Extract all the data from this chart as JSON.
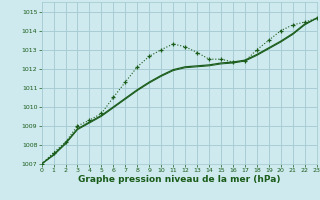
{
  "background_color": "#ceeaee",
  "grid_color": "#a8cdd4",
  "line_color_dark": "#1a5c1a",
  "x_label": "Graphe pression niveau de la mer (hPa)",
  "ylim": [
    1007,
    1015.5
  ],
  "xlim": [
    0,
    23
  ],
  "yticks": [
    1007,
    1008,
    1009,
    1010,
    1011,
    1012,
    1013,
    1014,
    1015
  ],
  "xticks": [
    0,
    1,
    2,
    3,
    4,
    5,
    6,
    7,
    8,
    9,
    10,
    11,
    12,
    13,
    14,
    15,
    16,
    17,
    18,
    19,
    20,
    21,
    22,
    23
  ],
  "series1_x": [
    0,
    1,
    2,
    3,
    4,
    5,
    6,
    7,
    8,
    9,
    10,
    11,
    12,
    13,
    14,
    15,
    16,
    17,
    18,
    19,
    20,
    21,
    22,
    23
  ],
  "series1_y": [
    1007.0,
    1007.6,
    1008.15,
    1009.0,
    1009.3,
    1009.65,
    1010.5,
    1011.3,
    1012.1,
    1012.65,
    1013.0,
    1013.3,
    1013.15,
    1012.85,
    1012.5,
    1012.5,
    1012.35,
    1012.4,
    1013.0,
    1013.5,
    1014.0,
    1014.3,
    1014.45,
    1014.65
  ],
  "series2_x": [
    0,
    1,
    2,
    3,
    4,
    5,
    6,
    7,
    8,
    9,
    10,
    11,
    12,
    13,
    14,
    15,
    16,
    17,
    18,
    19,
    20,
    21,
    22,
    23
  ],
  "series2_y": [
    1007.0,
    1007.5,
    1008.1,
    1008.85,
    1009.2,
    1009.55,
    1010.0,
    1010.45,
    1010.9,
    1011.3,
    1011.65,
    1011.95,
    1012.1,
    1012.15,
    1012.2,
    1012.3,
    1012.35,
    1012.45,
    1012.75,
    1013.1,
    1013.45,
    1013.85,
    1014.35,
    1014.65
  ],
  "series3_x": [
    0,
    1,
    2,
    3,
    4,
    5,
    6,
    7,
    8,
    9,
    10,
    11,
    12,
    13,
    14,
    15,
    16,
    17,
    18,
    19,
    20,
    21,
    22,
    23
  ],
  "series3_y": [
    1007.0,
    1007.45,
    1008.05,
    1008.8,
    1009.15,
    1009.5,
    1009.95,
    1010.4,
    1010.85,
    1011.25,
    1011.6,
    1011.9,
    1012.05,
    1012.1,
    1012.15,
    1012.25,
    1012.3,
    1012.4,
    1012.7,
    1013.05,
    1013.4,
    1013.8,
    1014.3,
    1014.65
  ]
}
